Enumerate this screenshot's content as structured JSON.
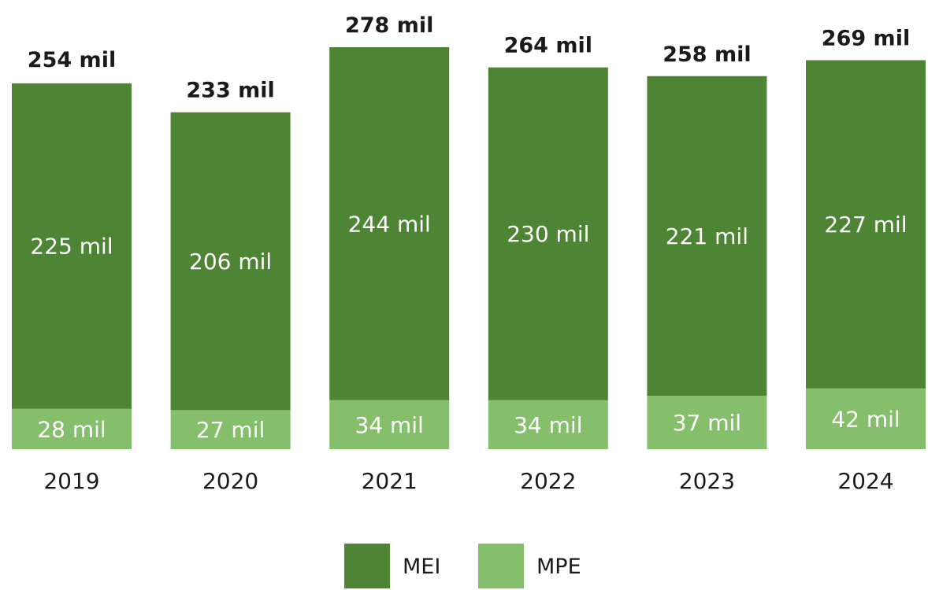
{
  "chart_data": {
    "type": "bar",
    "stacked": true,
    "categories": [
      "2019",
      "2020",
      "2021",
      "2022",
      "2023",
      "2024"
    ],
    "series": [
      {
        "name": "MEI",
        "values": [
          225,
          206,
          244,
          230,
          221,
          227
        ],
        "labels": [
          "225 mil",
          "206 mil",
          "244 mil",
          "230 mil",
          "221 mil",
          "227 mil"
        ],
        "color": "#4e8535"
      },
      {
        "name": "MPE",
        "values": [
          28,
          27,
          34,
          34,
          37,
          42
        ],
        "labels": [
          "28 mil",
          "27 mil",
          "34 mil",
          "34 mil",
          "37 mil",
          "42 mil"
        ],
        "color": "#85bf6b"
      }
    ],
    "totals": [
      254,
      233,
      278,
      264,
      258,
      269
    ],
    "total_labels": [
      "254 mil",
      "233 mil",
      "278 mil",
      "264 mil",
      "258 mil",
      "269 mil"
    ],
    "title": "",
    "xlabel": "",
    "ylabel": "",
    "ylim": [
      0,
      278
    ],
    "grid": false,
    "axes_visible": false,
    "legend_position": "bottom-center"
  }
}
